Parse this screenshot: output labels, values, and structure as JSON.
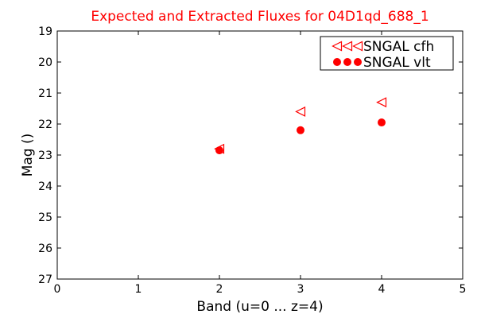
{
  "chart_data": {
    "type": "scatter",
    "title": "Expected and Extracted Fluxes for 04D1qd_688_1",
    "xlabel": "Band (u=0 ... z=4)",
    "ylabel": "Mag ()",
    "xlim": [
      0,
      5
    ],
    "ylim": [
      27,
      19
    ],
    "y_inverted": true,
    "xticks": [
      "0",
      "1",
      "2",
      "3",
      "4",
      "5"
    ],
    "yticks": [
      "19",
      "20",
      "21",
      "22",
      "23",
      "24",
      "25",
      "26",
      "27"
    ],
    "grid": false,
    "legend_position": "top-right",
    "series": [
      {
        "name": "SNGAL cfh",
        "marker": "triangle-left-open",
        "color": "#ff0000",
        "points": [
          {
            "x": 2,
            "y": 22.8
          },
          {
            "x": 3,
            "y": 21.6
          },
          {
            "x": 4,
            "y": 21.3
          }
        ]
      },
      {
        "name": "SNGAL vlt",
        "marker": "circle-filled",
        "color": "#ff0000",
        "points": [
          {
            "x": 2,
            "y": 22.85
          },
          {
            "x": 3,
            "y": 22.2
          },
          {
            "x": 4,
            "y": 21.95
          }
        ]
      }
    ]
  }
}
